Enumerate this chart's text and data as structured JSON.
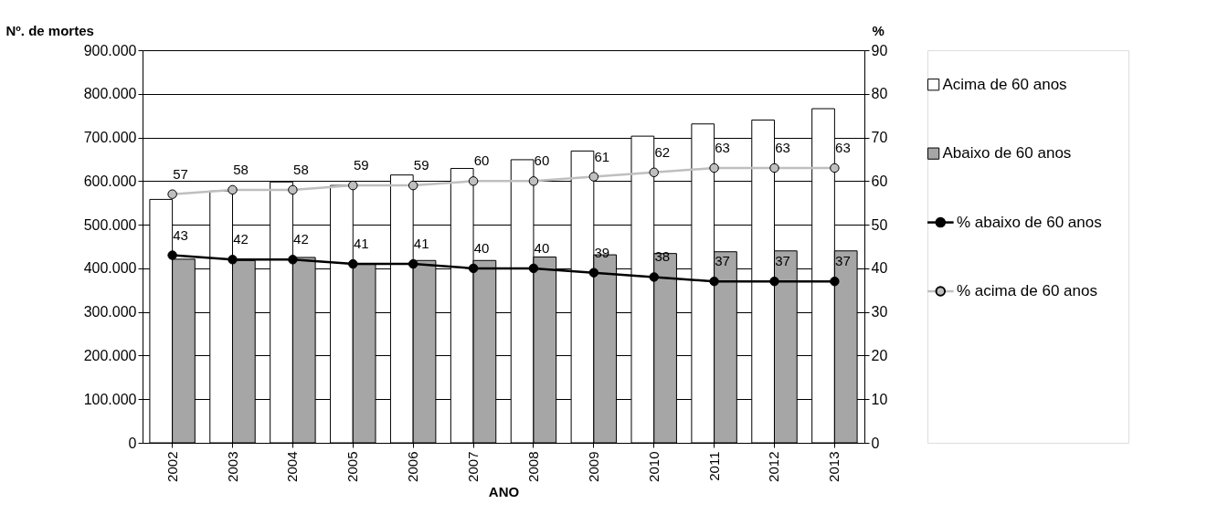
{
  "chart_data": {
    "type": "bar",
    "xlabel": "ANO",
    "ylabel": "Nº. de mortes",
    "y2label": "%",
    "categories": [
      "2002",
      "2003",
      "2004",
      "2005",
      "2006",
      "2007",
      "2008",
      "2009",
      "2010",
      "2011",
      "2012",
      "2013"
    ],
    "series": [
      {
        "name": "Acima de 60 anos",
        "color": "#ffffff",
        "values": [
          558000,
          577000,
          598000,
          590000,
          614000,
          629000,
          649000,
          669000,
          703000,
          731000,
          740000,
          766000
        ]
      },
      {
        "name": "Abaixo de 60 anos",
        "color": "#a6a6a6",
        "values": [
          421000,
          418000,
          425000,
          409000,
          418000,
          418000,
          426000,
          431000,
          434000,
          438000,
          440000,
          440000
        ]
      },
      {
        "name": "% abaixo de 60 anos",
        "type": "line",
        "axis": "y2",
        "color": "#000000",
        "values": [
          43,
          42,
          42,
          41,
          41,
          40,
          40,
          39,
          38,
          37,
          37,
          37
        ],
        "value_labels": [
          "43",
          "42",
          "42",
          "41",
          "41",
          "40",
          "40",
          "39",
          "38",
          "37",
          "37",
          "37"
        ]
      },
      {
        "name": "% acima de 60 anos",
        "type": "line",
        "axis": "y2",
        "color": "#bfbfbf",
        "values": [
          57,
          58,
          58,
          59,
          59,
          60,
          60,
          61,
          62,
          63,
          63,
          63
        ],
        "value_labels": [
          "57",
          "58",
          "58",
          "59",
          "59",
          "60",
          "60",
          "61",
          "62",
          "63",
          "63",
          "63"
        ]
      }
    ],
    "ylim": [
      0,
      900000
    ],
    "yticks": [
      {
        "value": 0,
        "label": "0"
      },
      {
        "value": 100000,
        "label": "100.000"
      },
      {
        "value": 200000,
        "label": "200.000"
      },
      {
        "value": 300000,
        "label": "300.000"
      },
      {
        "value": 400000,
        "label": "400.000"
      },
      {
        "value": 500000,
        "label": "500.000"
      },
      {
        "value": 600000,
        "label": "600.000"
      },
      {
        "value": 700000,
        "label": "700.000"
      },
      {
        "value": 800000,
        "label": "800.000"
      },
      {
        "value": 900000,
        "label": "900.000"
      }
    ],
    "y2lim": [
      0,
      90
    ],
    "y2ticks": [
      0,
      10,
      20,
      30,
      40,
      50,
      60,
      70,
      80,
      90
    ],
    "marker": "circle",
    "grid": "y",
    "legend": "right"
  }
}
